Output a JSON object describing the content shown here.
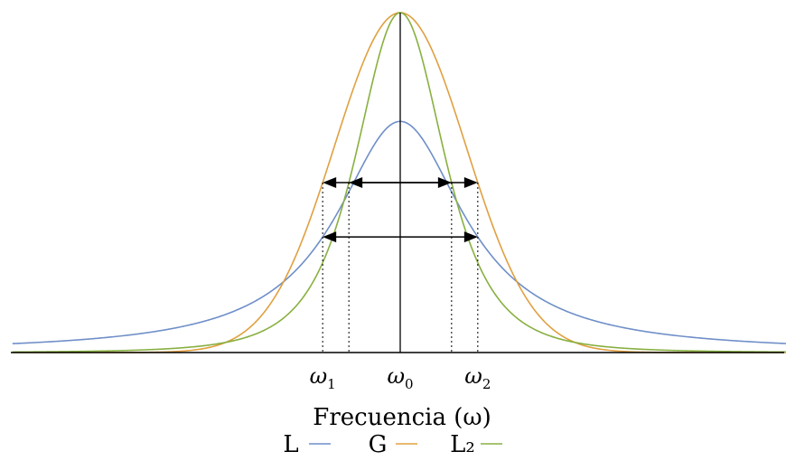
{
  "chart_data": {
    "type": "line",
    "title": "",
    "xlabel": "Frecuencia (ω)",
    "ylabel": "",
    "xlim": [
      -7.4,
      7.4
    ],
    "ylim": [
      0,
      1
    ],
    "grid": false,
    "legend_position": "bottom-center",
    "x_ticks": [
      {
        "x": -1.48,
        "label": "ω",
        "sub": "1"
      },
      {
        "x": 0,
        "label": "ω",
        "sub": "0"
      },
      {
        "x": 1.48,
        "label": "ω",
        "sub": "2"
      }
    ],
    "series": [
      {
        "name": "L",
        "color": "#6f8fc8",
        "function": "lorentzian",
        "amplitude": 0.68,
        "half_width": 1.48,
        "x": [
          -7.4,
          -5,
          -3,
          -2,
          -1.48,
          -1,
          -0.5,
          0,
          0.5,
          1,
          1.48,
          2,
          3,
          5,
          7.4
        ],
        "y": [
          0.026,
          0.054,
          0.133,
          0.24,
          0.34,
          0.467,
          0.611,
          0.68,
          0.611,
          0.467,
          0.34,
          0.24,
          0.133,
          0.054,
          0.026
        ]
      },
      {
        "name": "G",
        "color": "#e0a040",
        "function": "gaussian",
        "amplitude": 1.0,
        "half_width": 1.48,
        "x": [
          -7.4,
          -4,
          -3,
          -2,
          -1.48,
          -1,
          -0.5,
          0,
          0.5,
          1,
          1.48,
          2,
          3,
          4,
          7.4
        ],
        "y": [
          0.0,
          0.006,
          0.058,
          0.282,
          0.5,
          0.729,
          0.924,
          1.0,
          0.924,
          0.729,
          0.5,
          0.282,
          0.058,
          0.006,
          0.0
        ]
      },
      {
        "name": "L₂",
        "color": "#88b040",
        "function": "squared_lorentzian",
        "amplitude": 1.0,
        "half_width": 0.98,
        "x": [
          -7.4,
          -5,
          -3,
          -2,
          -0.98,
          -0.5,
          0,
          0.5,
          0.98,
          2,
          3,
          5,
          7.4
        ],
        "y": [
          0.018,
          0.037,
          0.096,
          0.194,
          0.5,
          0.795,
          1.0,
          0.795,
          0.5,
          0.194,
          0.096,
          0.037,
          0.018
        ]
      }
    ],
    "annotations": {
      "fwhm_arrows": [
        {
          "series": "G",
          "y": 0.5,
          "from": -1.48,
          "to": 1.48
        },
        {
          "series": "L₂",
          "y": 0.5,
          "from": -0.98,
          "to": 0.98
        },
        {
          "series": "L",
          "y": 0.34,
          "from": -1.48,
          "to": 1.48
        }
      ],
      "dotted_verticals": [
        {
          "x": -1.48,
          "y": 0.5
        },
        {
          "x": -0.98,
          "y": 0.5
        },
        {
          "x": 0.98,
          "y": 0.5
        },
        {
          "x": 1.48,
          "y": 0.5
        }
      ],
      "center_line": {
        "x": 0
      }
    }
  }
}
